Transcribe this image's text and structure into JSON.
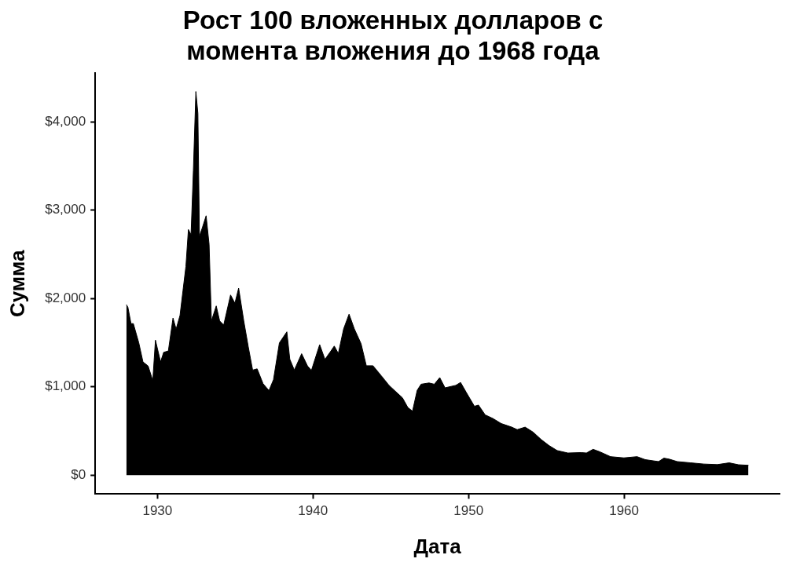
{
  "chart_data": {
    "type": "area",
    "title": "Рост 100 вложенных долларов с\nмомента вложения до 1968 года",
    "xlabel": "Дата",
    "ylabel": "Сумма",
    "x": [
      1928.0,
      1928.1,
      1928.3,
      1928.45,
      1928.8,
      1929.07,
      1929.4,
      1929.7,
      1929.87,
      1930.2,
      1930.4,
      1930.7,
      1931.0,
      1931.2,
      1931.45,
      1931.64,
      1931.83,
      1931.99,
      1932.16,
      1932.31,
      1932.47,
      1932.6,
      1932.7,
      1932.88,
      1933.13,
      1933.32,
      1933.47,
      1933.78,
      1934.0,
      1934.26,
      1934.7,
      1934.98,
      1935.22,
      1935.55,
      1935.84,
      1936.12,
      1936.41,
      1936.79,
      1937.17,
      1937.46,
      1937.84,
      1938.32,
      1938.51,
      1938.8,
      1939.27,
      1939.65,
      1939.9,
      1940.43,
      1940.77,
      1941.11,
      1941.37,
      1941.63,
      1941.97,
      1942.32,
      1942.66,
      1943.09,
      1943.43,
      1943.86,
      1944.38,
      1944.89,
      1945.4,
      1945.75,
      1946.1,
      1946.4,
      1946.7,
      1946.95,
      1947.46,
      1947.8,
      1948.15,
      1948.49,
      1949.18,
      1949.49,
      1949.87,
      1950.38,
      1950.64,
      1951.07,
      1951.58,
      1952.1,
      1952.78,
      1953.13,
      1953.64,
      1954.15,
      1954.67,
      1955.18,
      1955.7,
      1956.39,
      1957.24,
      1957.58,
      1958.01,
      1958.44,
      1959.13,
      1959.99,
      1960.84,
      1961.36,
      1962.22,
      1962.56,
      1962.9,
      1963.42,
      1964.28,
      1965.14,
      1966.0,
      1966.76,
      1967.36,
      1968.0
    ],
    "series": [
      {
        "color": "#000000",
        "values": [
          1930,
          1900,
          1715,
          1715,
          1497,
          1281,
          1235,
          1068,
          1528,
          1281,
          1390,
          1405,
          1778,
          1653,
          1807,
          2087,
          2363,
          2780,
          2721,
          3447,
          4342,
          4095,
          2704,
          2797,
          2936,
          2613,
          1745,
          1915,
          1745,
          1699,
          2039,
          1946,
          2116,
          1745,
          1452,
          1189,
          1203,
          1035,
          957,
          1080,
          1497,
          1622,
          1312,
          1189,
          1374,
          1235,
          1185,
          1477,
          1310,
          1394,
          1461,
          1377,
          1655,
          1822,
          1655,
          1488,
          1238,
          1238,
          1127,
          1016,
          932,
          876,
          765,
          724,
          960,
          1029,
          1043,
          1029,
          1104,
          988,
          1016,
          1049,
          932,
          779,
          793,
          682,
          640,
          584,
          543,
          515,
          543,
          487,
          403,
          334,
          278,
          250,
          255,
          250,
          292,
          264,
          209,
          195,
          209,
          175,
          153,
          192,
          181,
          153,
          139,
          125,
          119,
          139,
          117,
          111
        ]
      }
    ],
    "xlim": [
      1926,
      1970
    ],
    "xticks": [
      1930,
      1940,
      1950,
      1960
    ],
    "ylim": [
      -215,
      4550
    ],
    "yticks": [
      {
        "value": 0,
        "label": "$0"
      },
      {
        "value": 1000,
        "label": "$1,000"
      },
      {
        "value": 2000,
        "label": "$2,000"
      },
      {
        "value": 3000,
        "label": "$3,000"
      },
      {
        "value": 4000,
        "label": "$4,000"
      }
    ]
  }
}
